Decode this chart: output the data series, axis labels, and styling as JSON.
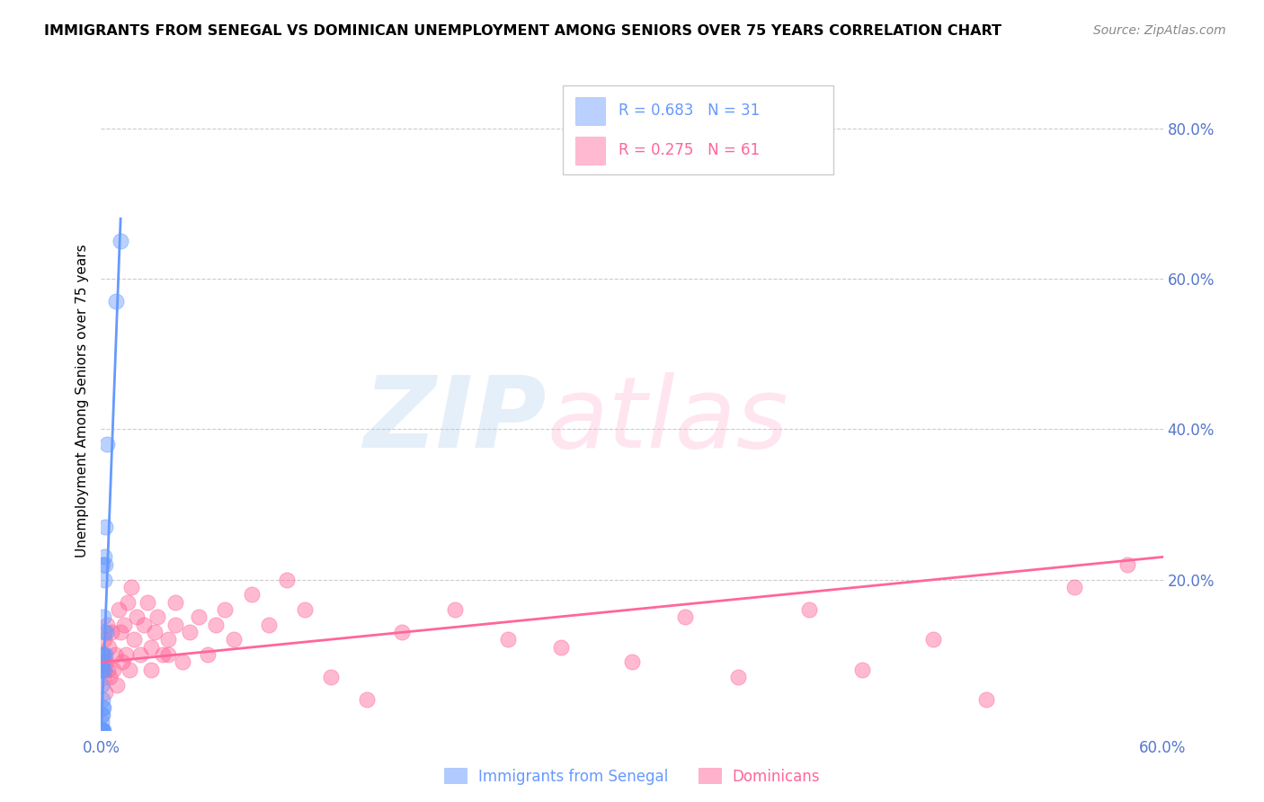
{
  "title": "IMMIGRANTS FROM SENEGAL VS DOMINICAN UNEMPLOYMENT AMONG SENIORS OVER 75 YEARS CORRELATION CHART",
  "source": "Source: ZipAtlas.com",
  "ylabel": "Unemployment Among Seniors over 75 years",
  "xlim": [
    0.0,
    0.6
  ],
  "ylim": [
    0.0,
    0.875
  ],
  "yticks_right": [
    0.2,
    0.4,
    0.6,
    0.8
  ],
  "ytick_labels_right": [
    "20.0%",
    "40.0%",
    "60.0%",
    "80.0%"
  ],
  "legend1_r": "0.683",
  "legend1_n": "31",
  "legend2_r": "0.275",
  "legend2_n": "61",
  "legend1_label": "Immigrants from Senegal",
  "legend2_label": "Dominicans",
  "blue_color": "#6699FF",
  "pink_color": "#FF6699",
  "axis_label_color": "#5577CC",
  "senegal_x": [
    0.0005,
    0.0005,
    0.0005,
    0.0005,
    0.0005,
    0.0005,
    0.0005,
    0.0007,
    0.0007,
    0.0007,
    0.0007,
    0.001,
    0.001,
    0.001,
    0.001,
    0.001,
    0.0012,
    0.0012,
    0.0015,
    0.0015,
    0.0018,
    0.0018,
    0.002,
    0.002,
    0.0022,
    0.0025,
    0.0025,
    0.003,
    0.0035,
    0.0085,
    0.011
  ],
  "senegal_y": [
    0.0,
    0.0,
    0.0,
    0.01,
    0.02,
    0.06,
    0.08,
    0.0,
    0.03,
    0.08,
    0.1,
    0.0,
    0.02,
    0.04,
    0.09,
    0.22,
    0.03,
    0.15,
    0.0,
    0.1,
    0.08,
    0.23,
    0.13,
    0.2,
    0.22,
    0.1,
    0.27,
    0.13,
    0.38,
    0.57,
    0.65
  ],
  "dominican_x": [
    0.001,
    0.0015,
    0.002,
    0.0025,
    0.003,
    0.0035,
    0.004,
    0.0045,
    0.005,
    0.006,
    0.007,
    0.008,
    0.009,
    0.01,
    0.011,
    0.012,
    0.013,
    0.014,
    0.015,
    0.016,
    0.017,
    0.0185,
    0.02,
    0.022,
    0.024,
    0.026,
    0.028,
    0.03,
    0.032,
    0.035,
    0.038,
    0.042,
    0.046,
    0.05,
    0.055,
    0.06,
    0.065,
    0.07,
    0.075,
    0.085,
    0.095,
    0.105,
    0.115,
    0.13,
    0.15,
    0.17,
    0.2,
    0.23,
    0.26,
    0.3,
    0.33,
    0.36,
    0.4,
    0.43,
    0.47,
    0.5,
    0.55,
    0.58,
    0.028,
    0.038,
    0.042
  ],
  "dominican_y": [
    0.1,
    0.07,
    0.12,
    0.05,
    0.09,
    0.14,
    0.08,
    0.11,
    0.07,
    0.13,
    0.08,
    0.1,
    0.06,
    0.16,
    0.13,
    0.09,
    0.14,
    0.1,
    0.17,
    0.08,
    0.19,
    0.12,
    0.15,
    0.1,
    0.14,
    0.17,
    0.11,
    0.13,
    0.15,
    0.1,
    0.12,
    0.14,
    0.09,
    0.13,
    0.15,
    0.1,
    0.14,
    0.16,
    0.12,
    0.18,
    0.14,
    0.2,
    0.16,
    0.07,
    0.04,
    0.13,
    0.16,
    0.12,
    0.11,
    0.09,
    0.15,
    0.07,
    0.16,
    0.08,
    0.12,
    0.04,
    0.19,
    0.22,
    0.08,
    0.1,
    0.17
  ],
  "pink_trend_x": [
    0.0,
    0.6
  ],
  "pink_trend_y": [
    0.09,
    0.23
  ],
  "blue_trend_x": [
    0.0003,
    0.011
  ],
  "blue_trend_y": [
    0.01,
    0.68
  ]
}
